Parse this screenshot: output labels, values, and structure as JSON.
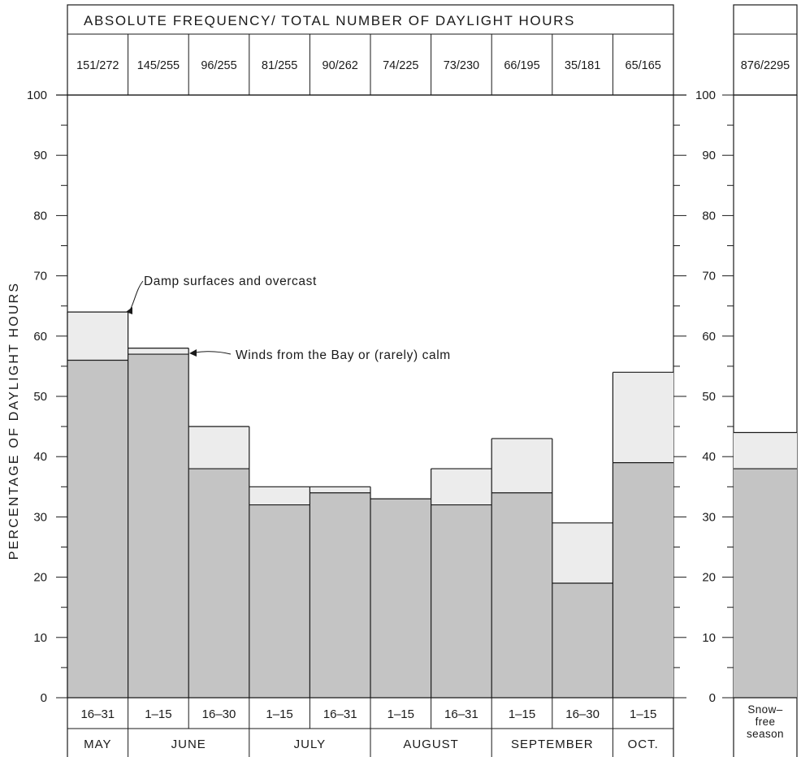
{
  "chart_data": [
    {
      "type": "bar",
      "stacked": true,
      "title": "ABSOLUTE FREQUENCY/ TOTAL NUMBER OF DAYLIGHT HOURS",
      "ylabel": "PERCENTAGE OF DAYLIGHT HOURS",
      "ylim": [
        0,
        100
      ],
      "y_ticks": [
        "0",
        "10",
        "20",
        "30",
        "40",
        "50",
        "60",
        "70",
        "80",
        "90",
        "100"
      ],
      "categories": [
        "16–31",
        "1–15",
        "16–30",
        "1–15",
        "16–31",
        "1–15",
        "16–31",
        "1–15",
        "16–30",
        "1–15"
      ],
      "months": [
        {
          "label": "MAY",
          "span": 1
        },
        {
          "label": "JUNE",
          "span": 2
        },
        {
          "label": "JULY",
          "span": 2
        },
        {
          "label": "AUGUST",
          "span": 2
        },
        {
          "label": "SEPTEMBER",
          "span": 2
        },
        {
          "label": "OCT.",
          "span": 1
        }
      ],
      "frequencies": [
        "151/272",
        "145/255",
        "96/255",
        "81/255",
        "90/262",
        "74/225",
        "73/230",
        "66/195",
        "35/181",
        "65/165"
      ],
      "series": [
        {
          "name": "Winds from the Bay or (rarely) calm",
          "values": [
            56,
            57,
            38,
            32,
            34,
            33,
            32,
            34,
            19,
            39
          ]
        },
        {
          "name": "Damp surfaces and overcast",
          "values": [
            8,
            1,
            7,
            3,
            1,
            0,
            6,
            9,
            10,
            15
          ]
        }
      ],
      "totals": [
        64,
        58,
        45,
        35,
        35,
        33,
        38,
        43,
        29,
        54
      ],
      "annotations": [
        "Damp surfaces and overcast",
        "Winds from the Bay or (rarely) calm"
      ],
      "colors": {
        "lower": "#c4c4c4",
        "upper": "#ececec",
        "line": "#1a1a1a"
      }
    },
    {
      "type": "bar",
      "stacked": true,
      "ylim": [
        0,
        100
      ],
      "y_ticks": [
        "0",
        "10",
        "20",
        "30",
        "40",
        "50",
        "60",
        "70",
        "80",
        "90",
        "100"
      ],
      "categories": [
        "Snow– free season"
      ],
      "category_lines": [
        "Snow–",
        "free",
        "season"
      ],
      "frequencies": [
        "876/2295"
      ],
      "series": [
        {
          "values": [
            38
          ]
        },
        {
          "values": [
            6
          ]
        }
      ],
      "totals": [
        44
      ]
    }
  ]
}
